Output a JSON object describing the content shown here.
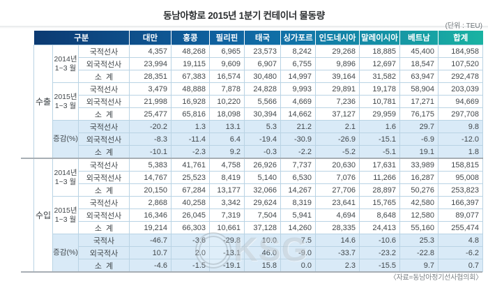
{
  "title": "동남아항로 2015년 1분기 컨테이너 물동량",
  "unit_label": "(단위 : TEU)",
  "source_label": "〈자료=동남아정기선사협의회〉",
  "watermark_text": "KSG",
  "colors": {
    "header_gradient_left": "#0c3a72",
    "header_gradient_mid": "#1173a8",
    "header_gradient_right": "#19b3a2",
    "highlight_row_bg": "#d9eaf7",
    "grid_border": "#b9d3e4",
    "section_divider": "#99a2aa"
  },
  "table": {
    "header": {
      "gubun_label": "구분",
      "country_columns": [
        "대만",
        "홍콩",
        "필리핀",
        "태국",
        "싱가포르",
        "인도네시아",
        "말레이시아",
        "베트남",
        "합계"
      ]
    },
    "sections": [
      {
        "name": "수출",
        "groups": [
          {
            "period": "2014년\n1~3 월",
            "highlight": false,
            "rows": [
              {
                "label": "국적선사",
                "values": [
                  "4,357",
                  "48,268",
                  "6,965",
                  "23,573",
                  "8,242",
                  "29,268",
                  "18,885",
                  "45,400",
                  "184,958"
                ]
              },
              {
                "label": "외국적선사",
                "values": [
                  "23,994",
                  "19,115",
                  "9,609",
                  "6,907",
                  "6,755",
                  "9,896",
                  "12,697",
                  "18,547",
                  "107,520"
                ]
              },
              {
                "label": "소  계",
                "values": [
                  "28,351",
                  "67,383",
                  "16,574",
                  "30,480",
                  "14,997",
                  "39,164",
                  "31,582",
                  "63,947",
                  "292,478"
                ]
              }
            ]
          },
          {
            "period": "2015년\n1~3 월",
            "highlight": false,
            "rows": [
              {
                "label": "국적선사",
                "values": [
                  "3,479",
                  "48,888",
                  "7,878",
                  "24,828",
                  "9,993",
                  "29,891",
                  "19,178",
                  "58,904",
                  "203,039"
                ]
              },
              {
                "label": "외국적선사",
                "values": [
                  "21,998",
                  "16,928",
                  "10,220",
                  "5,566",
                  "4,669",
                  "7,236",
                  "10,781",
                  "17,271",
                  "94,669"
                ]
              },
              {
                "label": "소  계",
                "values": [
                  "25,477",
                  "65,816",
                  "18,098",
                  "30,394",
                  "14,662",
                  "37,127",
                  "29,959",
                  "76,175",
                  "297,708"
                ]
              }
            ]
          },
          {
            "period": "증감(%)",
            "highlight": true,
            "rows": [
              {
                "label": "국적선사",
                "values": [
                  "-20.2",
                  "1.3",
                  "13.1",
                  "5.3",
                  "21.2",
                  "2.1",
                  "1.6",
                  "29.7",
                  "9.8"
                ]
              },
              {
                "label": "외국적선사",
                "values": [
                  "-8.3",
                  "-11.4",
                  "6.4",
                  "-19.4",
                  "-30.9",
                  "-26.9",
                  "-15.1",
                  "-6.9",
                  "-12.0"
                ]
              },
              {
                "label": "소  계",
                "values": [
                  "-10.1",
                  "-2.3",
                  "9.2",
                  "-0.3",
                  "-2.2",
                  "-5.2",
                  "-5.1",
                  "19.1",
                  "1.8"
                ]
              }
            ]
          }
        ]
      },
      {
        "name": "수입",
        "groups": [
          {
            "period": "2014년\n1~3 월",
            "highlight": false,
            "rows": [
              {
                "label": "국적선사",
                "values": [
                  "5,383",
                  "41,761",
                  "4,758",
                  "26,926",
                  "7,737",
                  "20,630",
                  "17,631",
                  "33,989",
                  "158,815"
                ]
              },
              {
                "label": "외국적선사",
                "values": [
                  "14,767",
                  "25,523",
                  "8,419",
                  "5,140",
                  "6,530",
                  "7,076",
                  "11,266",
                  "16,287",
                  "95,008"
                ]
              },
              {
                "label": "소  계",
                "values": [
                  "20,150",
                  "67,284",
                  "13,177",
                  "32,066",
                  "14,267",
                  "27,706",
                  "28,897",
                  "50,276",
                  "253,823"
                ]
              }
            ]
          },
          {
            "period": "2015년\n1~3 월",
            "highlight": false,
            "rows": [
              {
                "label": "국적선사",
                "values": [
                  "2,868",
                  "40,258",
                  "3,342",
                  "29,624",
                  "8,319",
                  "23,641",
                  "15,765",
                  "42,580",
                  "166,397"
                ]
              },
              {
                "label": "외국적선사",
                "values": [
                  "16,346",
                  "26,045",
                  "7,319",
                  "7,504",
                  "5,941",
                  "4,694",
                  "8,648",
                  "12,580",
                  "89,077"
                ]
              },
              {
                "label": "소  계",
                "values": [
                  "19,214",
                  "66,303",
                  "10,661",
                  "37,128",
                  "14,260",
                  "28,335",
                  "24,413",
                  "55,160",
                  "255,474"
                ]
              }
            ]
          },
          {
            "period": "증감(%)",
            "highlight": true,
            "rows": [
              {
                "label": "국적사",
                "values": [
                  "-46.7",
                  "-3.6",
                  "-29.8",
                  "10.0",
                  "7.5",
                  "14.6",
                  "-10.6",
                  "25.3",
                  "4.8"
                ]
              },
              {
                "label": "외국적사",
                "values": [
                  "10.7",
                  "2.0",
                  "-13.1",
                  "46.0",
                  "-9.0",
                  "-33.7",
                  "-23.2",
                  "-22.8",
                  "-6.2"
                ]
              },
              {
                "label": "소  계",
                "values": [
                  "-4.6",
                  "-1.5",
                  "-19.1",
                  "15.8",
                  "0.0",
                  "2.3",
                  "-15.5",
                  "9.7",
                  "0.7"
                ]
              }
            ]
          }
        ]
      }
    ]
  }
}
